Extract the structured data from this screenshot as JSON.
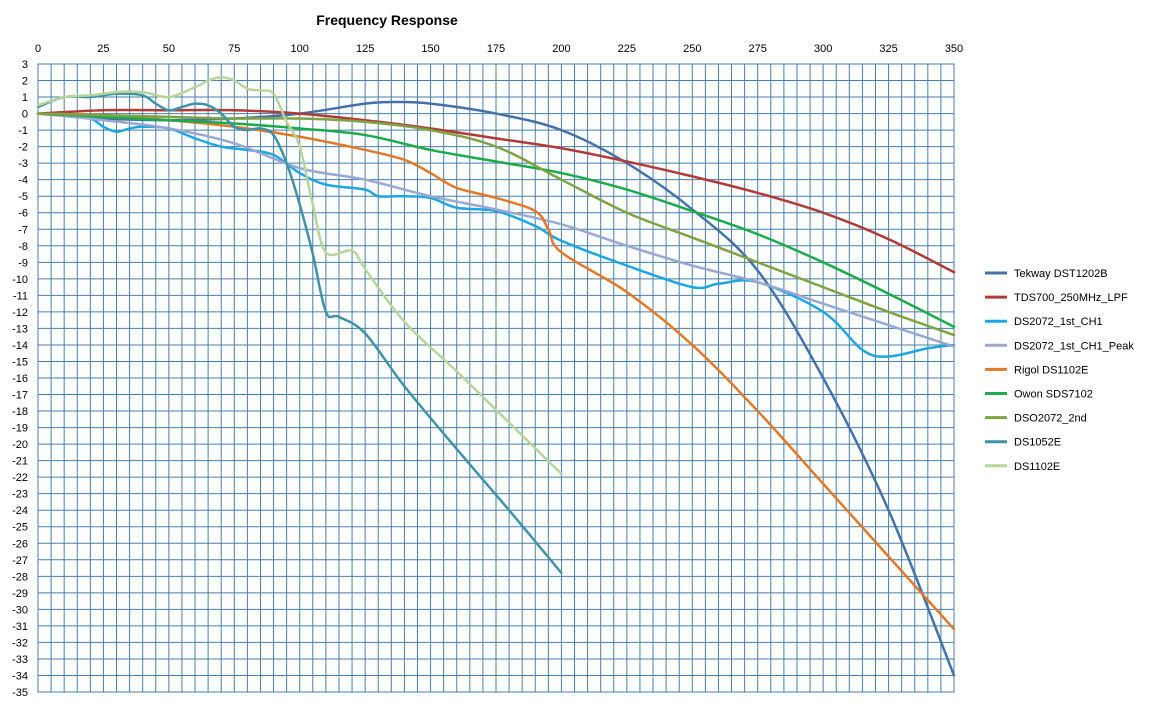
{
  "chart_data": {
    "type": "line",
    "title": "Frequency Response",
    "xlabel": "",
    "ylabel": "",
    "xlim": [
      0,
      350
    ],
    "ylim": [
      -35,
      3
    ],
    "x_ticks": [
      0,
      25,
      50,
      75,
      100,
      125,
      150,
      175,
      200,
      225,
      250,
      275,
      300,
      325,
      350
    ],
    "x_tick_labels": [
      "0",
      "25",
      "50",
      "75",
      "100",
      "125",
      "150",
      "175",
      "200",
      "225",
      "250",
      "275",
      "300",
      "325",
      "350"
    ],
    "y_ticks": [
      3,
      2,
      1,
      0,
      -1,
      -2,
      -3,
      -4,
      -5,
      -6,
      -7,
      -8,
      -9,
      -10,
      -11,
      -12,
      -13,
      -14,
      -15,
      -16,
      -17,
      -18,
      -19,
      -20,
      -21,
      -22,
      -23,
      -24,
      -25,
      -26,
      -27,
      -28,
      -29,
      -30,
      -31,
      -32,
      -33,
      -34,
      -35
    ],
    "x_axis_position": "top",
    "grid": true,
    "legend": "right",
    "series": [
      {
        "name": "Tekway DST1202B",
        "color": "#4472a8",
        "x": [
          0,
          25,
          50,
          75,
          100,
          125,
          137,
          150,
          175,
          200,
          225,
          250,
          275,
          300,
          325,
          350
        ],
        "y": [
          0,
          -0.3,
          -0.4,
          -0.3,
          0,
          0.6,
          0.7,
          0.6,
          0,
          -1,
          -3,
          -5.8,
          -9.5,
          -16,
          -24,
          -34
        ]
      },
      {
        "name": "TDS700_250MHz_LPF",
        "color": "#b03c3a",
        "x": [
          0,
          25,
          50,
          75,
          100,
          125,
          150,
          175,
          200,
          225,
          250,
          275,
          300,
          325,
          350
        ],
        "y": [
          0,
          0.2,
          0.2,
          0.2,
          0,
          -0.4,
          -0.9,
          -1.5,
          -2.1,
          -2.9,
          -3.8,
          -4.8,
          -6,
          -7.6,
          -9.6
        ]
      },
      {
        "name": "DS2072_1st_CH1",
        "color": "#1fa6e0",
        "x": [
          0,
          10,
          20,
          25,
          30,
          35,
          40,
          50,
          60,
          70,
          80,
          90,
          100,
          110,
          125,
          130,
          140,
          150,
          160,
          175,
          190,
          200,
          225,
          250,
          260,
          275,
          300,
          315,
          325,
          340,
          350
        ],
        "y": [
          0,
          -0.1,
          -0.3,
          -0.8,
          -1.1,
          -0.9,
          -0.8,
          -0.9,
          -1.5,
          -2,
          -2.2,
          -2.5,
          -3.6,
          -4.3,
          -4.6,
          -5,
          -5,
          -5.1,
          -5.7,
          -5.9,
          -6.8,
          -7.7,
          -9.2,
          -10.5,
          -10.3,
          -10.2,
          -12,
          -14.3,
          -14.7,
          -14.2,
          -14
        ]
      },
      {
        "name": "DS2072_1st_CH1_Peak",
        "color": "#99a8d2",
        "x": [
          0,
          25,
          50,
          75,
          100,
          125,
          150,
          175,
          200,
          225,
          250,
          275,
          300,
          325,
          350
        ],
        "y": [
          0,
          -0.4,
          -0.9,
          -1.8,
          -3.3,
          -4,
          -5,
          -5.8,
          -6.7,
          -8,
          -9.2,
          -10.2,
          -11.5,
          -12.8,
          -14.1
        ]
      },
      {
        "name": "Rigol DS1102E",
        "color": "#e07a2b",
        "x": [
          0,
          25,
          50,
          75,
          100,
          125,
          140,
          150,
          160,
          175,
          190,
          195,
          200,
          225,
          250,
          275,
          300,
          325,
          350
        ],
        "y": [
          0,
          -0.1,
          -0.4,
          -0.8,
          -1.4,
          -2.2,
          -2.8,
          -3.6,
          -4.5,
          -5.1,
          -5.9,
          -7,
          -8.4,
          -10.8,
          -14,
          -18,
          -22.4,
          -26.8,
          -31.2
        ]
      },
      {
        "name": "Owon SDS7102",
        "color": "#1daa4d",
        "x": [
          0,
          25,
          50,
          75,
          100,
          125,
          150,
          175,
          200,
          225,
          250,
          275,
          300,
          325,
          350
        ],
        "y": [
          0,
          -0.2,
          -0.4,
          -0.6,
          -0.9,
          -1.3,
          -2.2,
          -2.9,
          -3.6,
          -4.6,
          -5.9,
          -7.3,
          -9,
          -10.9,
          -12.9
        ]
      },
      {
        "name": "DSO2072_2nd",
        "color": "#7fa342",
        "x": [
          0,
          25,
          50,
          75,
          100,
          125,
          150,
          175,
          200,
          225,
          250,
          275,
          300,
          325,
          350
        ],
        "y": [
          0,
          -0.1,
          -0.2,
          -0.3,
          -0.3,
          -0.5,
          -1,
          -2,
          -4,
          -6,
          -7.5,
          -9,
          -10.5,
          -12,
          -13.4
        ]
      },
      {
        "name": "DS1052E",
        "color": "#3f93a8",
        "x": [
          0,
          10,
          20,
          30,
          40,
          45,
          50,
          55,
          60,
          65,
          70,
          75,
          80,
          85,
          90,
          95,
          100,
          105,
          110,
          115,
          125,
          140,
          160,
          180,
          200
        ],
        "y": [
          0.4,
          1,
          1,
          1.2,
          1.1,
          0.6,
          0.2,
          0.4,
          0.6,
          0.5,
          0,
          -0.8,
          -1,
          -0.9,
          -1.3,
          -3,
          -5.5,
          -8.5,
          -12,
          -12.3,
          -13.3,
          -16.5,
          -20.3,
          -24,
          -27.8
        ]
      },
      {
        "name": "DS1102E",
        "color": "#b7d49a",
        "x": [
          0,
          10,
          20,
          30,
          40,
          50,
          60,
          65,
          70,
          75,
          80,
          85,
          90,
          95,
          100,
          105,
          110,
          120,
          125,
          140,
          160,
          180,
          200
        ],
        "y": [
          0.5,
          1,
          1.1,
          1.3,
          1.3,
          1,
          1.6,
          2,
          2.2,
          2,
          1.5,
          1.4,
          1.2,
          -0.5,
          -2,
          -5.5,
          -8.4,
          -8.3,
          -9.4,
          -12.6,
          -15.6,
          -18.7,
          -21.8
        ]
      }
    ]
  }
}
